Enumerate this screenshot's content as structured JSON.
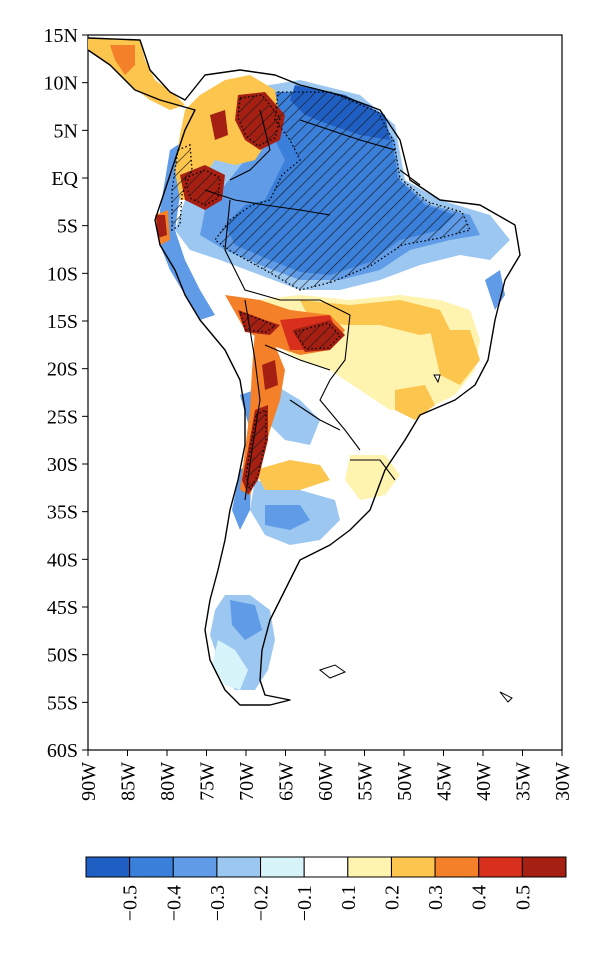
{
  "map": {
    "lat_ticks": [
      "15N",
      "10N",
      "5N",
      "EQ",
      "5S",
      "10S",
      "15S",
      "20S",
      "25S",
      "30S",
      "35S",
      "40S",
      "45S",
      "50S",
      "55S",
      "60S"
    ],
    "lon_ticks": [
      "90W",
      "85W",
      "80W",
      "75W",
      "70W",
      "65W",
      "60W",
      "55W",
      "50W",
      "45W",
      "40W",
      "35W",
      "30W"
    ]
  },
  "colorbar": {
    "colors": [
      "#1f5fc4",
      "#3a7fd9",
      "#5f9be6",
      "#9cc7f0",
      "#d8f4fb",
      "#ffffff",
      "#fff3b0",
      "#fbc54e",
      "#f4802a",
      "#d9301e",
      "#a51f13"
    ],
    "labels": [
      "−0.5",
      "−0.4",
      "−0.3",
      "−0.2",
      "−0.1",
      "0.1",
      "0.2",
      "0.3",
      "0.4",
      "0.5"
    ]
  },
  "colors": {
    "land_outline": "#000000",
    "hatch": "#1a1a1a"
  }
}
